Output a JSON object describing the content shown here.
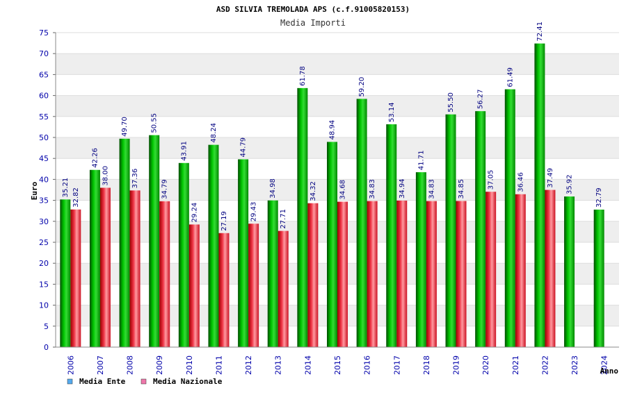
{
  "chart_data": {
    "type": "bar",
    "title": "ASD SILVIA TREMOLADA APS (c.f.91005820153)",
    "subtitle": "Media Importi",
    "xlabel": "Anno",
    "ylabel": "Euro",
    "ylim": [
      0,
      75
    ],
    "ytick_step": 5,
    "grid": true,
    "legend_position": "bottom-left",
    "categories": [
      "2006",
      "2007",
      "2008",
      "2009",
      "2010",
      "2011",
      "2012",
      "2013",
      "2014",
      "2015",
      "2016",
      "2017",
      "2018",
      "2019",
      "2020",
      "2021",
      "2022",
      "2023",
      "2024"
    ],
    "series": [
      {
        "name": "Media Ente",
        "color": "#00aa00",
        "legend_color": "#55aaee",
        "values": [
          35.21,
          42.26,
          49.7,
          50.55,
          43.91,
          48.24,
          44.79,
          34.98,
          61.78,
          48.94,
          59.2,
          53.14,
          41.71,
          55.5,
          56.27,
          61.49,
          72.41,
          35.92,
          32.79
        ],
        "labels": [
          "35.21",
          "42.26",
          "49.70",
          "50.55",
          "43.91",
          "48.24",
          "44.79",
          "34.98",
          "61.78",
          "48.94",
          "59.20",
          "53.14",
          "41.71",
          "55.50",
          "56.27",
          "61.49",
          "72.41",
          "35.92",
          "32.79"
        ]
      },
      {
        "name": "Media Nazionale",
        "color": "#ee2222",
        "legend_color": "#ee77aa",
        "values": [
          32.82,
          38.0,
          37.36,
          34.79,
          29.24,
          27.19,
          29.43,
          27.71,
          34.32,
          34.68,
          34.83,
          34.94,
          34.83,
          34.85,
          37.05,
          36.46,
          37.49,
          null,
          null
        ],
        "labels": [
          "32.82",
          "38.00",
          "37.36",
          "34.79",
          "29.24",
          "27.19",
          "29.43",
          "27.71",
          "34.32",
          "34.68",
          "34.83",
          "34.94",
          "34.83",
          "34.85",
          "37.05",
          "36.46",
          "37.49",
          "",
          ""
        ]
      }
    ]
  }
}
